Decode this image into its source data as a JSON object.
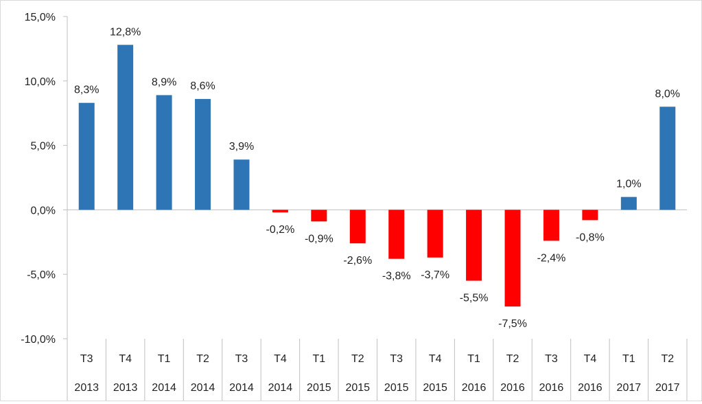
{
  "chart_data": {
    "type": "bar",
    "title": "",
    "xlabel": "",
    "ylabel": "",
    "ylim": [
      -10,
      15
    ],
    "yticks": [
      -10,
      -5,
      0,
      5,
      10,
      15
    ],
    "ytick_labels": [
      "-10,0%",
      "-5,0%",
      "0,0%",
      "5,0%",
      "10,0%",
      "15,0%"
    ],
    "categories": [
      {
        "quarter": "T3",
        "year": "2013"
      },
      {
        "quarter": "T4",
        "year": "2013"
      },
      {
        "quarter": "T1",
        "year": "2014"
      },
      {
        "quarter": "T2",
        "year": "2014"
      },
      {
        "quarter": "T3",
        "year": "2014"
      },
      {
        "quarter": "T4",
        "year": "2014"
      },
      {
        "quarter": "T1",
        "year": "2015"
      },
      {
        "quarter": "T2",
        "year": "2015"
      },
      {
        "quarter": "T3",
        "year": "2015"
      },
      {
        "quarter": "T4",
        "year": "2015"
      },
      {
        "quarter": "T1",
        "year": "2016"
      },
      {
        "quarter": "T2",
        "year": "2016"
      },
      {
        "quarter": "T3",
        "year": "2016"
      },
      {
        "quarter": "T4",
        "year": "2016"
      },
      {
        "quarter": "T1",
        "year": "2017"
      },
      {
        "quarter": "T2",
        "year": "2017"
      }
    ],
    "values": [
      8.3,
      12.8,
      8.9,
      8.6,
      3.9,
      -0.2,
      -0.9,
      -2.6,
      -3.8,
      -3.7,
      -5.5,
      -7.5,
      -2.4,
      -0.8,
      1.0,
      8.0
    ],
    "data_labels": [
      "8,3%",
      "12,8%",
      "8,9%",
      "8,6%",
      "3,9%",
      "-0,2%",
      "-0,9%",
      "-2,6%",
      "-3,8%",
      "-3,7%",
      "-5,5%",
      "-7,5%",
      "-2,4%",
      "-0,8%",
      "1,0%",
      "8,0%"
    ],
    "colors": {
      "positive": "#2e75b6",
      "negative": "#ff0000",
      "axis": "#bfbfbf"
    },
    "grid": false,
    "legend": "none"
  }
}
